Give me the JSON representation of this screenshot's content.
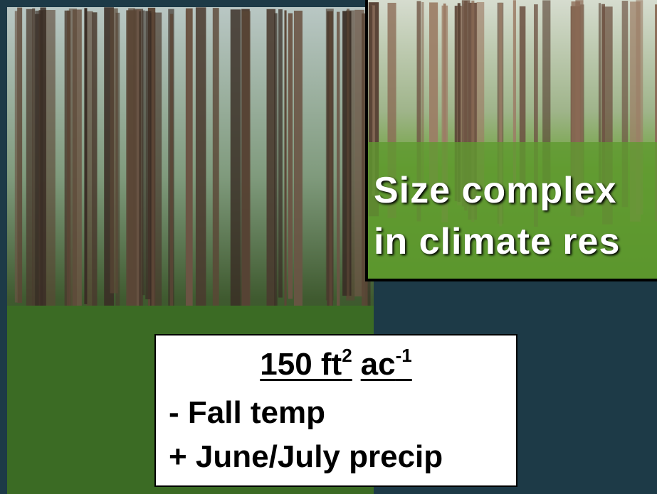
{
  "photo_caption": {
    "lines": [
      "Size complex",
      "in climate res"
    ]
  },
  "info_box": {
    "heading": {
      "base1": "150 ft",
      "sup1": "2",
      "base2": "ac",
      "sup2": "-1"
    },
    "lines": [
      "- Fall temp",
      "+ June/July precip"
    ]
  }
}
